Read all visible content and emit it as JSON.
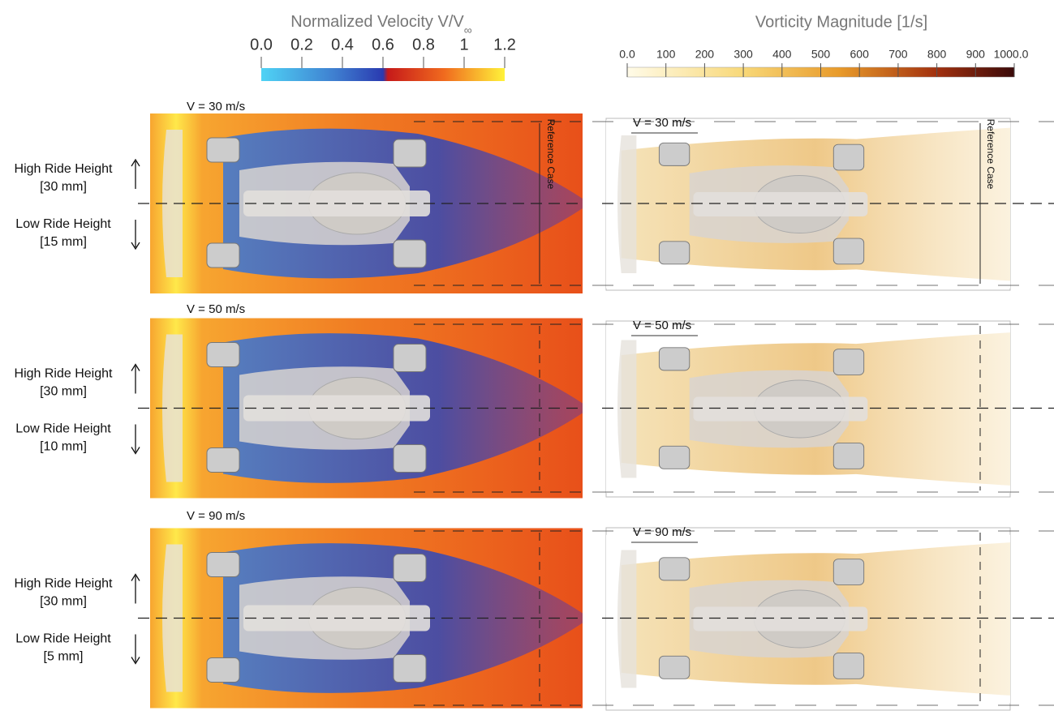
{
  "velocity_colorbar": {
    "title": "Normalized Velocity V/V",
    "title_subscript": "∞",
    "ticks": [
      "0.0",
      "0.2",
      "0.4",
      "0.6",
      "0.8",
      "1",
      "1.2"
    ]
  },
  "vorticity_colorbar": {
    "title": "Vorticity Magnitude [1/s]",
    "ticks": [
      "0.0",
      "100",
      "200",
      "300",
      "400",
      "500",
      "600",
      "700",
      "800",
      "900",
      "1000.0"
    ]
  },
  "reference_label": "Reference Case",
  "rows": [
    {
      "speed": "V = 30 m/s",
      "high_label": "High Ride Height",
      "high_value": "[30 mm]",
      "low_label": "Low Ride Height",
      "low_value": "[15 mm]"
    },
    {
      "speed": "V = 50 m/s",
      "high_label": "High Ride Height",
      "high_value": "[30 mm]",
      "low_label": "Low Ride Height",
      "low_value": "[10 mm]"
    },
    {
      "speed": "V = 90 m/s",
      "high_label": "High Ride Height",
      "high_value": "[30 mm]",
      "low_label": "Low Ride Height",
      "low_value": "[5 mm]"
    }
  ]
}
